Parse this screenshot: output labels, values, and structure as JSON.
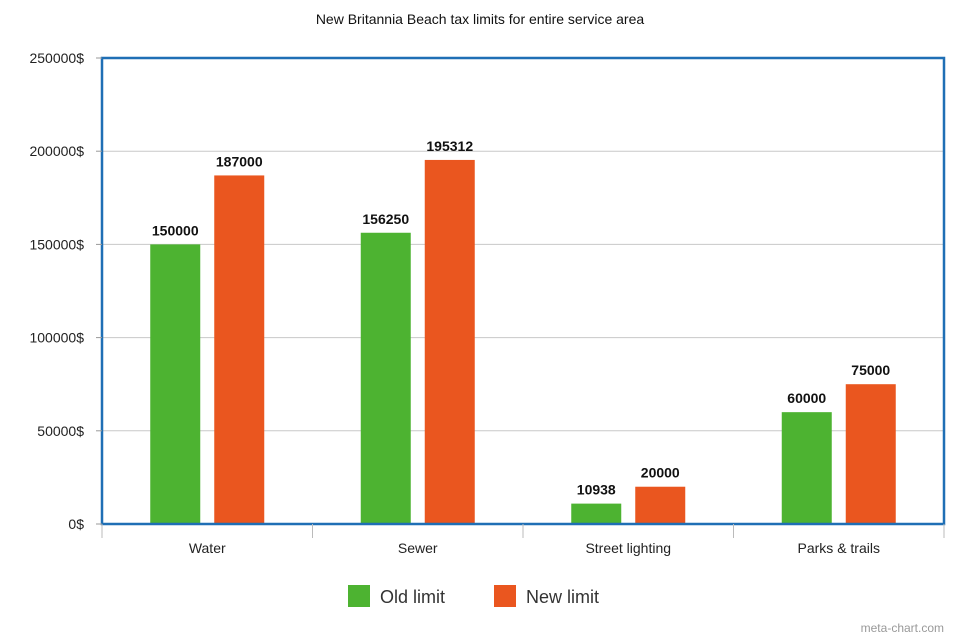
{
  "chart_data": {
    "type": "bar",
    "title": "New Britannia Beach tax limits for entire service area",
    "xlabel": "",
    "ylabel": "",
    "ylim": [
      0,
      250000
    ],
    "y_ticks": [
      0,
      50000,
      100000,
      150000,
      200000,
      250000
    ],
    "y_tick_labels": [
      "0$",
      "50000$",
      "100000$",
      "150000$",
      "200000$",
      "250000$"
    ],
    "grid": true,
    "legend_position": "bottom-center",
    "categories": [
      "Water",
      "Sewer",
      "Street lighting",
      "Parks & trails"
    ],
    "series": [
      {
        "name": "Old limit",
        "color": "#4db331",
        "values": [
          150000,
          156250,
          10938,
          60000
        ],
        "data_labels": [
          "150000",
          "156250",
          "10938",
          "60000"
        ]
      },
      {
        "name": "New limit",
        "color": "#ea561f",
        "values": [
          187000,
          195312,
          20000,
          75000
        ],
        "data_labels": [
          "187000",
          "195312",
          "20000",
          "75000"
        ]
      }
    ],
    "watermark": "meta-chart.com",
    "plot_border_color": "#1f6fb5",
    "grid_color": "#c8c8c8"
  }
}
